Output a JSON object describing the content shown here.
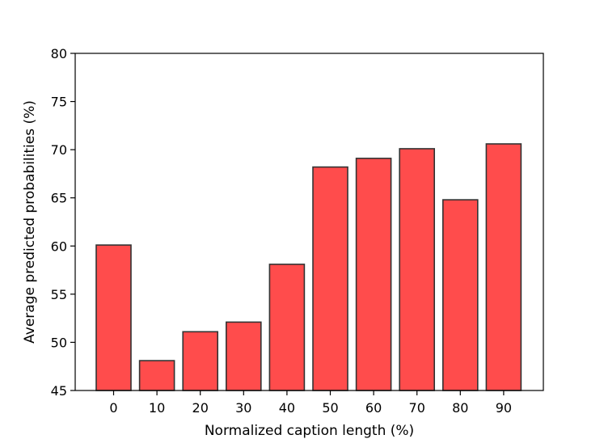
{
  "chart_data": {
    "type": "bar",
    "title": "",
    "xlabel": "Normalized caption length (%)",
    "ylabel": "Average predicted probabilities (%)",
    "categories": [
      "0",
      "10",
      "20",
      "30",
      "40",
      "50",
      "60",
      "70",
      "80",
      "90"
    ],
    "values": [
      60.1,
      48.1,
      51.1,
      52.1,
      58.1,
      68.2,
      69.1,
      70.1,
      64.8,
      70.6
    ],
    "ylim": [
      45,
      80
    ],
    "yticks": [
      45,
      50,
      55,
      60,
      65,
      70,
      75,
      80
    ],
    "grid": false,
    "colors": {
      "bar_fill": "#ff4c4c",
      "bar_edge": "#333333",
      "axis": "#000000"
    }
  }
}
